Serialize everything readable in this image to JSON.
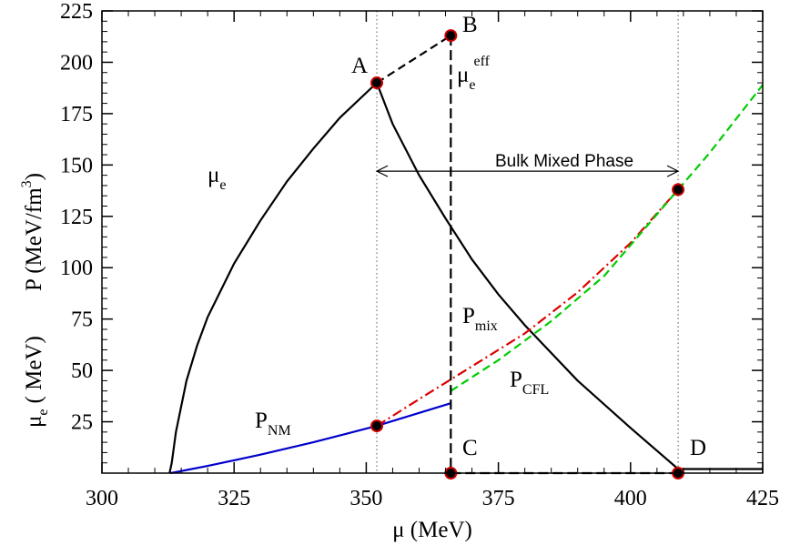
{
  "chart_data": {
    "type": "line",
    "xlabel": "μ (MeV)",
    "ylabel_top": "P (MeV/fm",
    "ylabel_top_sup": "3",
    "ylabel_top_close": ")",
    "ylabel_bottom": "μ",
    "ylabel_bottom_sub": "e",
    "ylabel_bottom_rest": "( MeV)",
    "xlim": [
      300,
      425
    ],
    "ylim": [
      0,
      225
    ],
    "xticks": [
      300,
      325,
      350,
      375,
      400,
      425
    ],
    "yticks": [
      25,
      50,
      75,
      100,
      125,
      150,
      175,
      200,
      225
    ],
    "colors": {
      "black": "#000000",
      "blue": "#0000cc",
      "red": "#dd0000",
      "green": "#00cc00"
    },
    "series": [
      {
        "key": "mu_e_rise",
        "color": "#000000",
        "dash": "solid",
        "points": [
          [
            312.8,
            0
          ],
          [
            313.2,
            5
          ],
          [
            314,
            20
          ],
          [
            316,
            45
          ],
          [
            318,
            62
          ],
          [
            320,
            76
          ],
          [
            325,
            102
          ],
          [
            330,
            123
          ],
          [
            335,
            142
          ],
          [
            340,
            158
          ],
          [
            345,
            173
          ],
          [
            352,
            190
          ]
        ]
      },
      {
        "key": "mu_e_fall",
        "color": "#000000",
        "dash": "solid",
        "points": [
          [
            352,
            190
          ],
          [
            355,
            170
          ],
          [
            360,
            145
          ],
          [
            365,
            124
          ],
          [
            370,
            104
          ],
          [
            375,
            87
          ],
          [
            380,
            72
          ],
          [
            390,
            45
          ],
          [
            400,
            22
          ],
          [
            409,
            2
          ]
        ]
      },
      {
        "key": "mu_e_tail",
        "color": "#000000",
        "dash": "solid",
        "points": [
          [
            409,
            2
          ],
          [
            425,
            2
          ]
        ]
      },
      {
        "key": "P_NM",
        "color": "#0000cc",
        "dash": "solid",
        "points": [
          [
            313,
            0
          ],
          [
            320,
            3.5
          ],
          [
            330,
            9
          ],
          [
            340,
            15
          ],
          [
            352,
            23
          ],
          [
            366,
            34
          ]
        ]
      },
      {
        "key": "P_mix",
        "color": "#dd0000",
        "dash": "dashdot",
        "points": [
          [
            352,
            23
          ],
          [
            360,
            36
          ],
          [
            370,
            52
          ],
          [
            380,
            68
          ],
          [
            390,
            88
          ],
          [
            400,
            112
          ],
          [
            409,
            138
          ]
        ]
      },
      {
        "key": "P_CFL",
        "color": "#00cc00",
        "dash": "dashed",
        "points": [
          [
            366,
            40
          ],
          [
            375,
            55
          ],
          [
            385,
            74
          ],
          [
            395,
            96
          ],
          [
            409,
            138
          ],
          [
            415,
            156
          ],
          [
            425,
            189
          ]
        ]
      },
      {
        "key": "AB",
        "color": "#000000",
        "dash": "dashed",
        "points": [
          [
            352,
            190
          ],
          [
            366,
            213
          ]
        ]
      },
      {
        "key": "BC",
        "color": "#000000",
        "dash": "longdash",
        "points": [
          [
            366,
            213
          ],
          [
            366,
            0
          ]
        ]
      },
      {
        "key": "CD",
        "color": "#000000",
        "dash": "longdash",
        "points": [
          [
            366,
            0
          ],
          [
            409,
            0
          ]
        ]
      }
    ],
    "vlines": [
      352,
      409
    ],
    "markers": [
      [
        352,
        190
      ],
      [
        366,
        213
      ],
      [
        366,
        0
      ],
      [
        409,
        0
      ],
      [
        352,
        23
      ],
      [
        409,
        138
      ]
    ],
    "labels": {
      "A": "A",
      "B": "B",
      "C": "C",
      "D": "D",
      "mu_e_base": "μ",
      "mu_e_sub": "e",
      "mu_eff_base": "μ",
      "mu_eff_sub": "e",
      "mu_eff_sup": "eff",
      "pmix_base": "P",
      "pmix_sub": "mix",
      "pcfl_base": "P",
      "pcfl_sub": "CFL",
      "pnm_base": "P",
      "pnm_sub": "NM",
      "bulk": "Bulk Mixed Phase"
    },
    "arrow_range": [
      352,
      409
    ],
    "arrow_y": 147
  }
}
